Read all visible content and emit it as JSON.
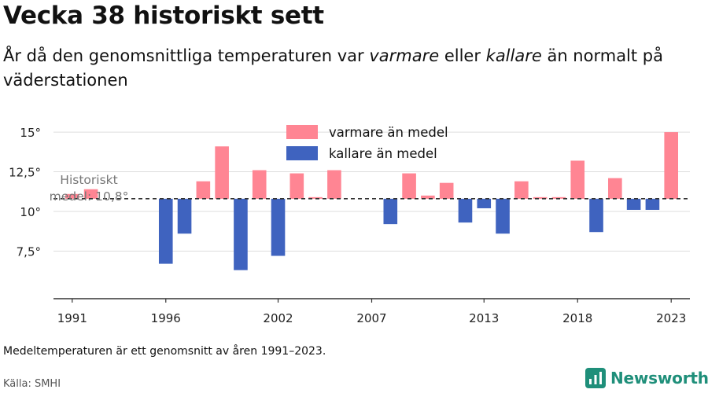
{
  "title": "Vecka 38 historiskt sett",
  "subtitle": {
    "part1": "År då den genomsnittliga temperaturen var ",
    "warm_word": "varmare",
    "part2": " eller ",
    "cold_word": "kallare",
    "part3": " än normalt på väderstationen"
  },
  "footnote": "Medeltemperaturen är ett genomsnitt av åren 1991–2023.",
  "source": "Källa: SMHI",
  "brand": "Newsworthy",
  "colors": {
    "warm": "#ff8593",
    "cold": "#3f63bf",
    "grid": "#dddddd",
    "axis": "#333333",
    "reference": "#333333",
    "brand": "#1f8f7a"
  },
  "chart_data": {
    "type": "bar",
    "baseline": 10.8,
    "reference_label_line1": "Historiskt",
    "reference_label_line2": "medel: 10,8°",
    "x": [
      1991,
      1992,
      1993,
      1994,
      1995,
      1996,
      1997,
      1998,
      1999,
      2000,
      2001,
      2002,
      2003,
      2004,
      2005,
      2006,
      2007,
      2008,
      2009,
      2010,
      2011,
      2012,
      2013,
      2014,
      2015,
      2016,
      2017,
      2018,
      2019,
      2020,
      2021,
      2022,
      2023
    ],
    "values": [
      11.1,
      11.4,
      null,
      null,
      null,
      6.7,
      8.6,
      11.9,
      14.1,
      6.3,
      12.6,
      7.2,
      12.4,
      10.9,
      12.6,
      null,
      null,
      9.2,
      12.4,
      11.0,
      11.8,
      9.3,
      10.2,
      8.6,
      11.9,
      10.9,
      10.9,
      13.2,
      8.7,
      12.1,
      10.1,
      10.1,
      15.0
    ],
    "xticks": [
      1991,
      1996,
      2002,
      2007,
      2013,
      2018,
      2023
    ],
    "yticks": [
      7.5,
      10,
      12.5,
      15
    ],
    "ytick_labels": [
      "7,5°",
      "10°",
      "12,5°",
      "15°"
    ],
    "ylim": [
      4.5,
      15.5
    ],
    "legend": {
      "position": "top",
      "warm_label": "varmare än medel",
      "cold_label": "kallare än medel"
    },
    "grid": true
  }
}
